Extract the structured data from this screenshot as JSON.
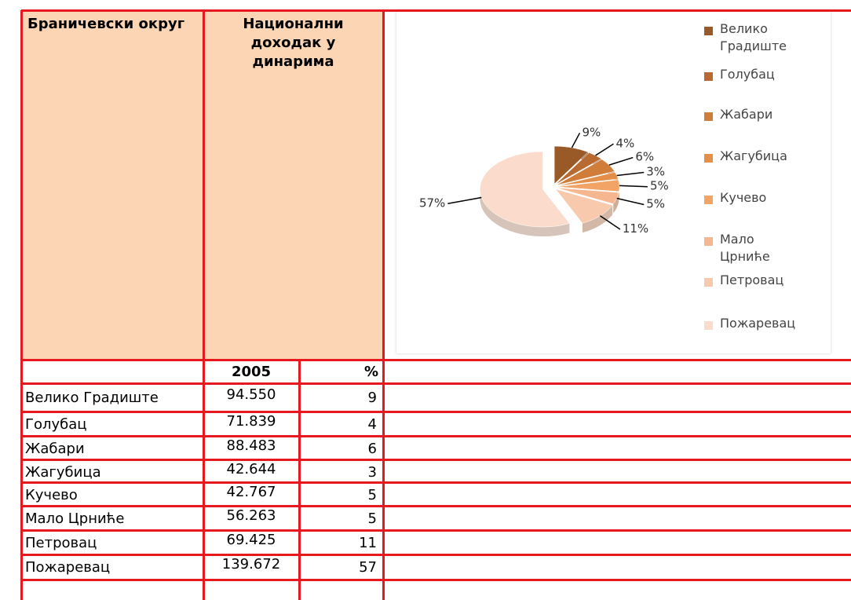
{
  "table": {
    "header": {
      "district": "Браничевски округ",
      "income": "Национални доходак у динарима",
      "year": "2005",
      "percent": "%"
    },
    "rows": [
      [
        "Велико Градиште",
        "94.550",
        9
      ],
      [
        "Голубац",
        "71.839",
        4
      ],
      [
        "Жабари",
        "88.483",
        6
      ],
      [
        "Жагубица",
        "42.644",
        3
      ],
      [
        "Кучево",
        "42.767",
        5
      ],
      [
        "Мало Црниће",
        "56.263",
        5
      ],
      [
        "Петровац",
        "69.425",
        11
      ],
      [
        "Пожаревац",
        "139.672",
        57
      ]
    ]
  },
  "chart_data": {
    "type": "pie",
    "categories": [
      "Велико Градиште",
      "Голубац",
      "Жабари",
      "Жагубица",
      "Кучево",
      "Мало Црниће",
      "Петровац",
      "Пожаревац"
    ],
    "values": [
      9,
      4,
      6,
      3,
      5,
      5,
      11,
      57
    ],
    "value_labels": [
      "9%",
      "4%",
      "6%",
      "3%",
      "5%",
      "5%",
      "11%",
      "57%"
    ],
    "colors": [
      "#9a5a28",
      "#b86a30",
      "#d07d3a",
      "#e48f48",
      "#f1a465",
      "#f5b690",
      "#f8c9ad",
      "#fbdccc"
    ],
    "legend": "right"
  }
}
